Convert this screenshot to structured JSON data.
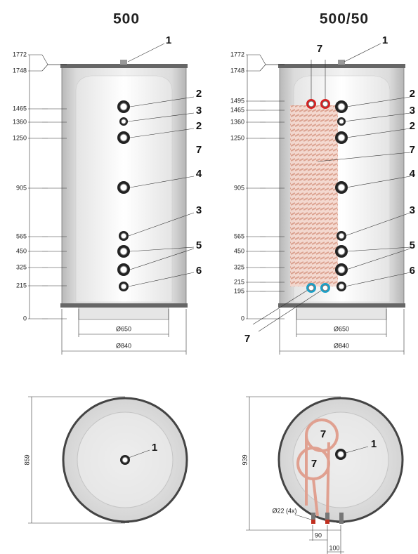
{
  "views": [
    {
      "title": "500",
      "dimensions": [
        "1772",
        "1748",
        "1465",
        "1360",
        "1250",
        "905",
        "565",
        "450",
        "325",
        "215",
        "0"
      ],
      "callouts": [
        "1",
        "2",
        "3",
        "2",
        "7",
        "4",
        "3",
        "5",
        "6"
      ],
      "widths": [
        "Ø650",
        "Ø840"
      ]
    },
    {
      "title": "500/50",
      "dimensions": [
        "1772",
        "1748",
        "1495",
        "1465",
        "1360",
        "1250",
        "905",
        "565",
        "450",
        "325",
        "215",
        "195",
        "0"
      ],
      "callouts": [
        "7",
        "1",
        "2",
        "3",
        "2",
        "7",
        "4",
        "3",
        "5",
        "6",
        "7"
      ],
      "widths": [
        "Ø650",
        "Ø840"
      ]
    }
  ],
  "plans": [
    {
      "dimension": "859",
      "callouts": [
        "1"
      ]
    },
    {
      "dimension": "939",
      "callouts": [
        "7",
        "7",
        "1"
      ],
      "notes": [
        "Ø22 (4x)",
        "90",
        "100"
      ]
    }
  ]
}
